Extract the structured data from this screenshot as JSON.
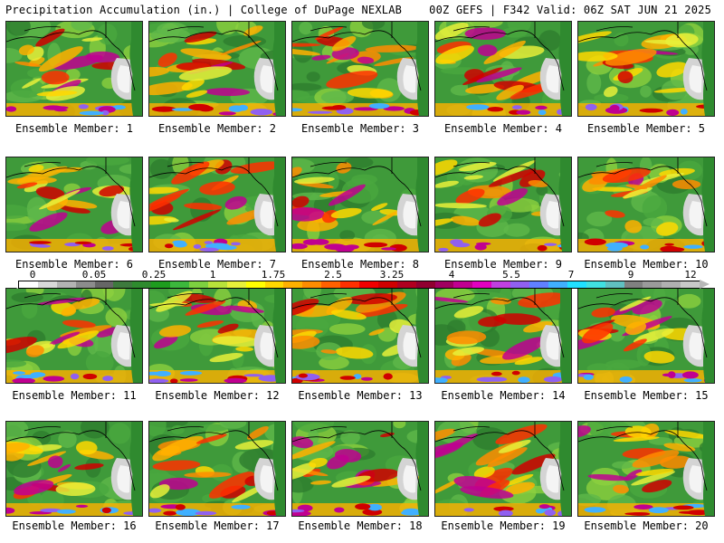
{
  "header": {
    "left": "Precipitation Accumulation (in.) | College of DuPage NEXLAB",
    "right": "00Z GEFS | F342 Valid: 06Z SAT JUN 21 2025"
  },
  "members": [
    {
      "label": "Ensemble Member: 1"
    },
    {
      "label": "Ensemble Member: 2"
    },
    {
      "label": "Ensemble Member: 3"
    },
    {
      "label": "Ensemble Member: 4"
    },
    {
      "label": "Ensemble Member: 5"
    },
    {
      "label": "Ensemble Member: 6"
    },
    {
      "label": "Ensemble Member: 7"
    },
    {
      "label": "Ensemble Member: 8"
    },
    {
      "label": "Ensemble Member: 9"
    },
    {
      "label": "Ensemble Member: 10"
    },
    {
      "label": "Ensemble Member: 11"
    },
    {
      "label": "Ensemble Member: 12"
    },
    {
      "label": "Ensemble Member: 13"
    },
    {
      "label": "Ensemble Member: 14"
    },
    {
      "label": "Ensemble Member: 15"
    },
    {
      "label": "Ensemble Member: 16"
    },
    {
      "label": "Ensemble Member: 17"
    },
    {
      "label": "Ensemble Member: 18"
    },
    {
      "label": "Ensemble Member: 19"
    },
    {
      "label": "Ensemble Member: 20"
    }
  ],
  "scale": {
    "ticks": [
      "0",
      "0.05",
      "0.25",
      "1",
      "1.75",
      "2.5",
      "3.25",
      "4",
      "5.5",
      "7",
      "9",
      "12"
    ],
    "colors": [
      "#ffffff",
      "#d9d9d9",
      "#b3b3b3",
      "#8c8c8c",
      "#666666",
      "#3d7a3d",
      "#2e8b2e",
      "#1e9c1e",
      "#3cb83c",
      "#7dd13f",
      "#b8e23a",
      "#e8f03a",
      "#ffff00",
      "#ffd800",
      "#ffb000",
      "#ff8c00",
      "#ff6000",
      "#ff3000",
      "#f00000",
      "#d00000",
      "#b00020",
      "#900030",
      "#a00060",
      "#c00090",
      "#e000c0",
      "#c040e0",
      "#9060f0",
      "#6080ff",
      "#40b0ff",
      "#20e0ff",
      "#40e0e0",
      "#60c0c0",
      "#808080",
      "#9a9a9a",
      "#b0b0b0",
      "#c8c8c8"
    ]
  }
}
